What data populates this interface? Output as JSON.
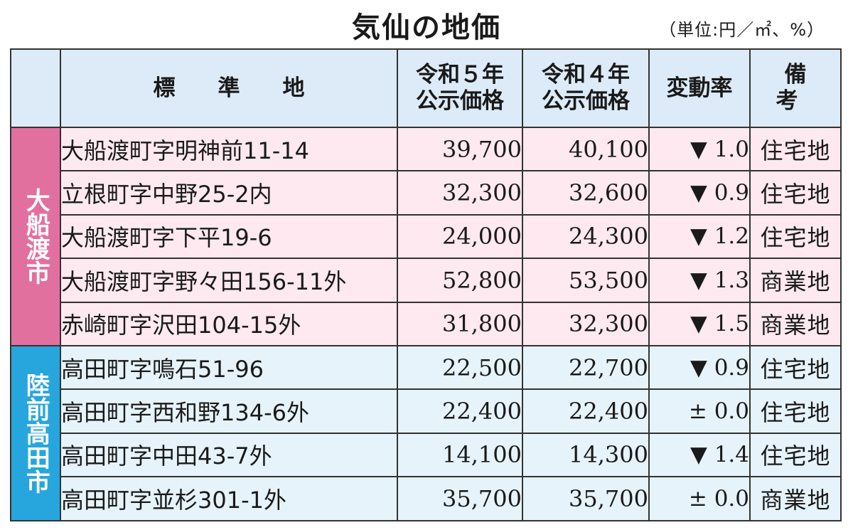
{
  "title": "気仙の地価",
  "unit_note": "（単位:円／㎡、%）",
  "headers": {
    "location": "標準地",
    "price_r5_line1": "令和５年",
    "price_r5_line2": "公示価格",
    "price_r4_line1": "令和４年",
    "price_r4_line2": "公示価格",
    "change": "変動率",
    "note": "備考"
  },
  "colors": {
    "ofunato_accent": "#e2709f",
    "rikuzentakata_accent": "#27a6dd"
  },
  "regions": [
    {
      "name": "大船渡市",
      "rows": [
        {
          "location": "大船渡町字明神前11-14",
          "price_r5": "39,700",
          "price_r4": "40,100",
          "change": "▼ 1.0",
          "note": "住宅地"
        },
        {
          "location": "立根町字中野25-2内",
          "price_r5": "32,300",
          "price_r4": "32,600",
          "change": "▼ 0.9",
          "note": "住宅地"
        },
        {
          "location": "大船渡町字下平19-6",
          "price_r5": "24,000",
          "price_r4": "24,300",
          "change": "▼ 1.2",
          "note": "住宅地"
        },
        {
          "location": "大船渡町字野々田156-11外",
          "price_r5": "52,800",
          "price_r4": "53,500",
          "change": "▼ 1.3",
          "note": "商業地"
        },
        {
          "location": "赤崎町字沢田104-15外",
          "price_r5": "31,800",
          "price_r4": "32,300",
          "change": "▼ 1.5",
          "note": "商業地"
        }
      ]
    },
    {
      "name": "陸前高田市",
      "rows": [
        {
          "location": "高田町字鳴石51-96",
          "price_r5": "22,500",
          "price_r4": "22,700",
          "change": "▼ 0.9",
          "note": "住宅地"
        },
        {
          "location": "高田町字西和野134-6外",
          "price_r5": "22,400",
          "price_r4": "22,400",
          "change": "± 0.0",
          "note": "住宅地"
        },
        {
          "location": "高田町字中田43-7外",
          "price_r5": "14,100",
          "price_r4": "14,300",
          "change": "▼ 1.4",
          "note": "住宅地"
        },
        {
          "location": "高田町字並杉301-1外",
          "price_r5": "35,700",
          "price_r4": "35,700",
          "change": "± 0.0",
          "note": "商業地"
        }
      ]
    }
  ]
}
